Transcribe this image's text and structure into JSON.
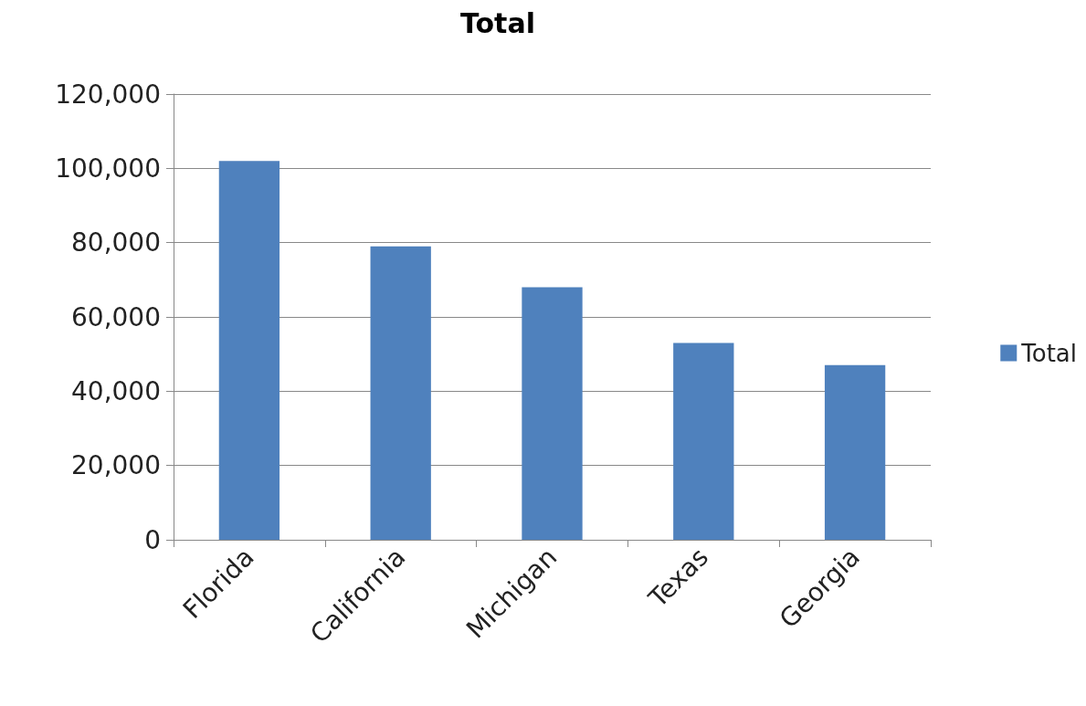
{
  "chart_data": {
    "type": "bar",
    "title": "Total",
    "categories": [
      "Florida",
      "California",
      "Michigan",
      "Texas",
      "Georgia"
    ],
    "series": [
      {
        "name": "Total",
        "color": "#4f81bd",
        "values": [
          102000,
          79000,
          68000,
          53000,
          47000
        ]
      }
    ],
    "ylim": [
      0,
      120000
    ],
    "yticks": [
      {
        "value": 0,
        "label": "0"
      },
      {
        "value": 20000,
        "label": "20,000"
      },
      {
        "value": 40000,
        "label": "40,000"
      },
      {
        "value": 60000,
        "label": "60,000"
      },
      {
        "value": 80000,
        "label": "80,000"
      },
      {
        "value": 100000,
        "label": "100,000"
      },
      {
        "value": 120000,
        "label": "120,000"
      }
    ],
    "grid": "y",
    "legend": "right"
  }
}
